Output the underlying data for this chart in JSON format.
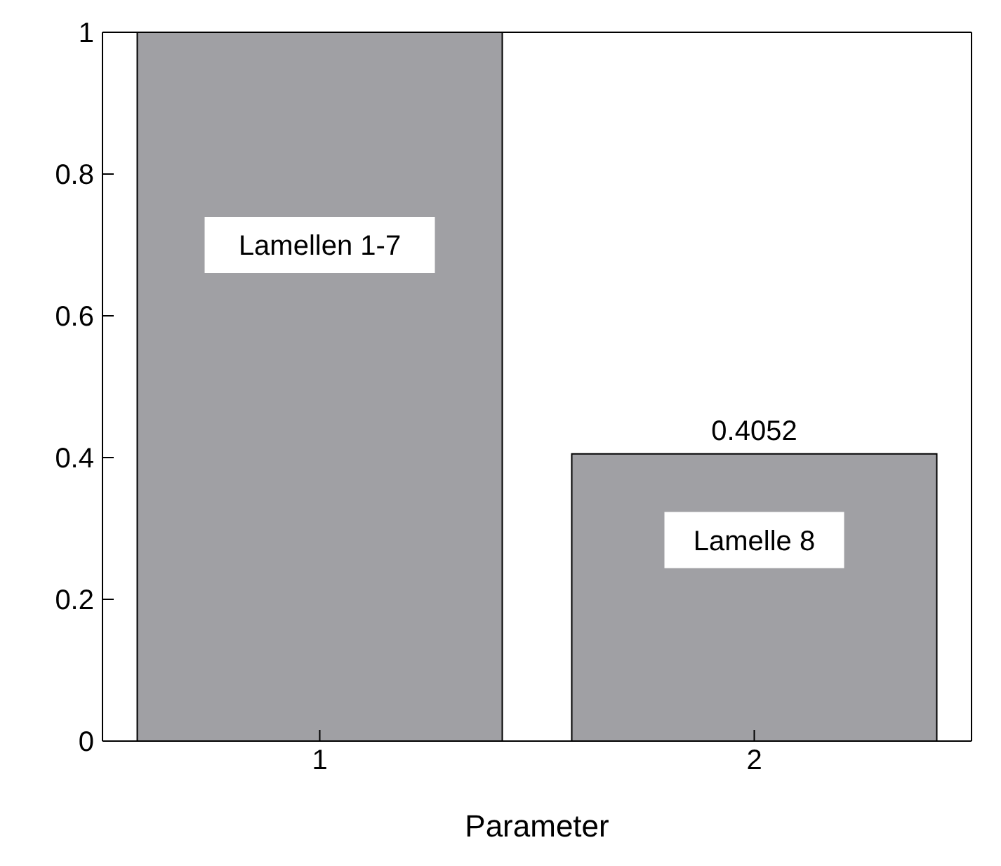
{
  "chart_data": {
    "type": "bar",
    "categories": [
      "1",
      "2"
    ],
    "values": [
      1,
      0.4052
    ],
    "color": "#a0a0a4",
    "value_labels": [
      null,
      "0.4052"
    ],
    "xlabel": "Parameter",
    "ylim": [
      0,
      1
    ],
    "yticks": [
      0,
      0.2,
      0.4,
      0.6,
      0.8,
      1
    ],
    "grid": false,
    "legend": false,
    "annotations": [
      "Lamellen 1-7",
      "Lamelle 8"
    ]
  }
}
